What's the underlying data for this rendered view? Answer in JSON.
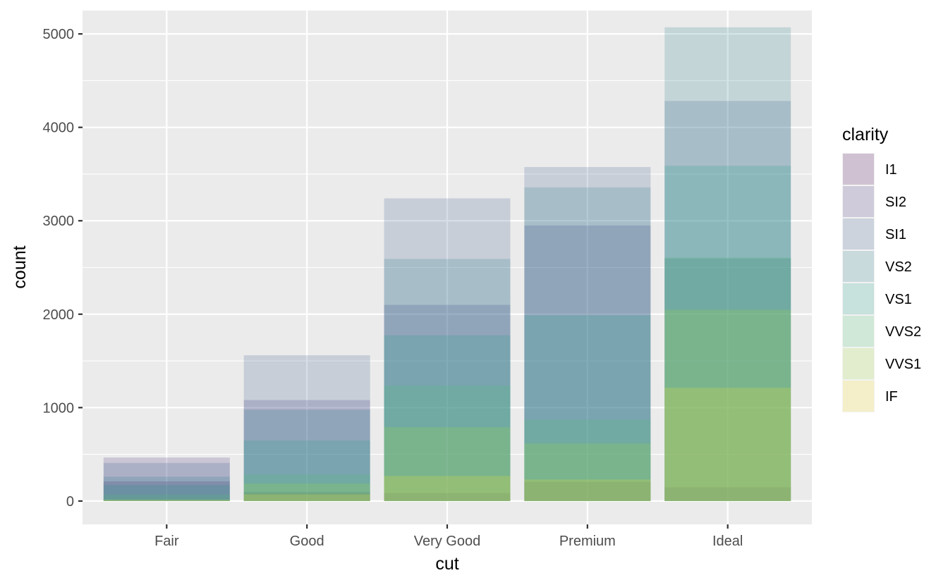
{
  "chart_data": {
    "type": "bar",
    "position": "identity",
    "alpha": 0.2,
    "xlabel": "cut",
    "ylabel": "count",
    "categories": [
      "Fair",
      "Good",
      "Very Good",
      "Premium",
      "Ideal"
    ],
    "ylim": [
      -250,
      5250
    ],
    "yticks": [
      0,
      1000,
      2000,
      3000,
      4000,
      5000
    ],
    "grid": true,
    "legend": {
      "title": "clarity",
      "position": "right"
    },
    "series": [
      {
        "name": "I1",
        "color": "#440154",
        "values": [
          210,
          96,
          84,
          205,
          146
        ]
      },
      {
        "name": "SI2",
        "color": "#46337E",
        "values": [
          466,
          1081,
          2100,
          2949,
          2598
        ]
      },
      {
        "name": "SI1",
        "color": "#365C8D",
        "values": [
          408,
          1560,
          3240,
          3575,
          4282
        ]
      },
      {
        "name": "VS2",
        "color": "#277F8E",
        "values": [
          261,
          978,
          2591,
          3357,
          5071
        ]
      },
      {
        "name": "VS1",
        "color": "#1FA187",
        "values": [
          170,
          648,
          1775,
          1989,
          3589
        ]
      },
      {
        "name": "VVS2",
        "color": "#4AC16D",
        "values": [
          69,
          286,
          1235,
          870,
          2606
        ]
      },
      {
        "name": "VVS1",
        "color": "#9FDA3A",
        "values": [
          17,
          186,
          789,
          616,
          2047
        ]
      },
      {
        "name": "IF",
        "color": "#FDE725",
        "values": [
          9,
          71,
          268,
          230,
          1212
        ]
      }
    ]
  }
}
